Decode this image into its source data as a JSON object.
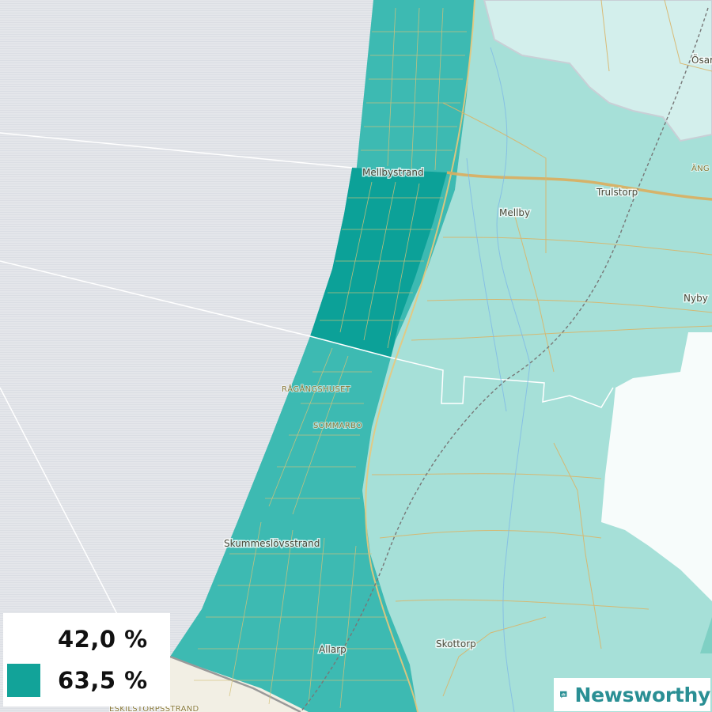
{
  "map": {
    "places": {
      "mellbystrand": "Mellbystrand",
      "mellby": "Mellby",
      "trulstorp": "Trulstorp",
      "nyby": "Nyby",
      "osar": "Ösar",
      "ang": "ÄNG",
      "ragangshuset": "RÅGÅNGSHUSET",
      "sommarbo": "SOMMARBO",
      "skummeslovsstrand": "Skummeslövsstrand",
      "allarp": "Allarp",
      "skottorp": "Skottorp",
      "eskilstorpsstrand": "ESKILSTORPSSTRAND"
    },
    "colors": {
      "sea": "#e4e6ea",
      "land_base": "#a6e0d8",
      "coastal_strip": "#3dbab2",
      "highlight_area": "#0ca198",
      "lake": "#d3efec",
      "white_area": "#f7fcfb",
      "roads": "#d9b56a"
    }
  },
  "legend": {
    "items": [
      {
        "label": "42,0 %",
        "color": "#f7fcfb"
      },
      {
        "label": "63,5 %",
        "color": "#12a399"
      }
    ]
  },
  "brand": {
    "name": "Newsworthy",
    "icon": "bar-chart-speech-icon"
  }
}
